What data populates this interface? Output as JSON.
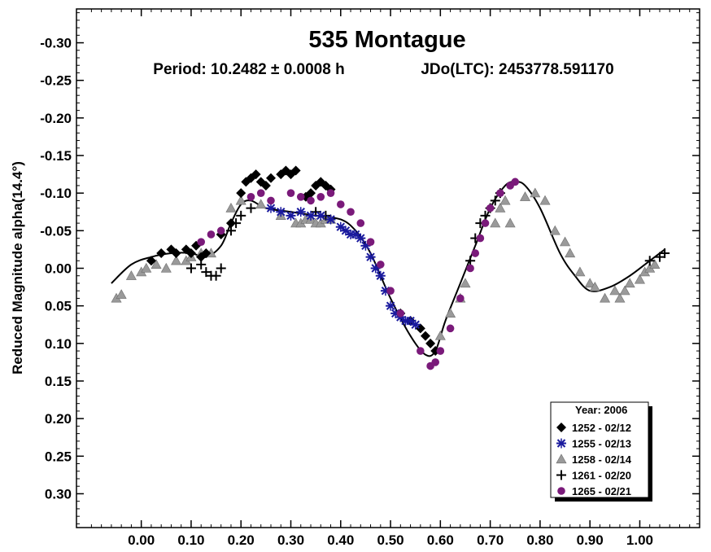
{
  "chart_data": {
    "type": "scatter",
    "title": "535 Montague",
    "subtitle_period": "Period: 10.2482 ± 0.0008 h",
    "subtitle_epoch": "JDo(LTC): 2453778.591170",
    "ylabel": "Reduced Magnitude alpha(14.4°)",
    "xlabel": "",
    "xlim": [
      -0.13,
      1.12
    ],
    "ylim": [
      -0.345,
      0.345
    ],
    "y_inverted": true,
    "x_ticks": [
      "0.00",
      "0.10",
      "0.20",
      "0.30",
      "0.40",
      "0.50",
      "0.60",
      "0.70",
      "0.80",
      "0.90",
      "1.00"
    ],
    "x_tick_values": [
      0,
      0.1,
      0.2,
      0.3,
      0.4,
      0.5,
      0.6,
      0.7,
      0.8,
      0.9,
      1.0
    ],
    "y_ticks": [
      "-0.30",
      "-0.25",
      "-0.20",
      "-0.15",
      "-0.10",
      "-0.05",
      "0.00",
      "0.05",
      "0.10",
      "0.15",
      "0.20",
      "0.25",
      "0.30"
    ],
    "y_tick_values": [
      -0.3,
      -0.25,
      -0.2,
      -0.15,
      -0.1,
      -0.05,
      0,
      0.05,
      0.1,
      0.15,
      0.2,
      0.25,
      0.3
    ],
    "legend_title": "Year: 2006",
    "legend_position": "bottom-right",
    "fit_curve": {
      "x": [
        -0.06,
        -0.02,
        0.02,
        0.06,
        0.1,
        0.13,
        0.16,
        0.18,
        0.2,
        0.22,
        0.25,
        0.3,
        0.35,
        0.4,
        0.43,
        0.46,
        0.5,
        0.54,
        0.57,
        0.59,
        0.61,
        0.64,
        0.67,
        0.7,
        0.73,
        0.75,
        0.77,
        0.8,
        0.84,
        0.87,
        0.9,
        0.94,
        0.98,
        1.02,
        1.05
      ],
      "y": [
        0.02,
        -0.005,
        -0.015,
        -0.02,
        -0.02,
        -0.015,
        -0.03,
        -0.06,
        -0.085,
        -0.09,
        -0.08,
        -0.075,
        -0.07,
        -0.065,
        -0.05,
        -0.02,
        0.04,
        0.09,
        0.115,
        0.11,
        0.07,
        0.02,
        -0.03,
        -0.08,
        -0.11,
        -0.115,
        -0.11,
        -0.08,
        -0.02,
        0.01,
        0.03,
        0.025,
        0.01,
        -0.01,
        -0.025
      ]
    },
    "series": [
      {
        "name": "1252 - 02/12",
        "marker": "diamond",
        "color": "#000000",
        "x": [
          0.02,
          0.04,
          0.06,
          0.07,
          0.09,
          0.1,
          0.11,
          0.12,
          0.13,
          0.16,
          0.18,
          0.2,
          0.21,
          0.22,
          0.23,
          0.24,
          0.25,
          0.26,
          0.28,
          0.29,
          0.3,
          0.31,
          0.33,
          0.34,
          0.35,
          0.36,
          0.37,
          0.38,
          0.52,
          0.54,
          0.56,
          0.57,
          0.58,
          0.59
        ],
        "y": [
          -0.01,
          -0.02,
          -0.025,
          -0.02,
          -0.025,
          -0.02,
          -0.03,
          -0.015,
          -0.02,
          -0.045,
          -0.06,
          -0.1,
          -0.115,
          -0.12,
          -0.125,
          -0.115,
          -0.11,
          -0.12,
          -0.125,
          -0.13,
          -0.125,
          -0.13,
          -0.095,
          -0.1,
          -0.11,
          -0.115,
          -0.11,
          -0.105,
          0.06,
          0.07,
          0.08,
          0.09,
          0.1,
          0.11
        ]
      },
      {
        "name": "1255 - 02/13",
        "marker": "asterisk",
        "color": "#1a1a9e",
        "x": [
          0.26,
          0.28,
          0.3,
          0.32,
          0.34,
          0.36,
          0.38,
          0.4,
          0.41,
          0.42,
          0.43,
          0.44,
          0.45,
          0.46,
          0.47,
          0.48,
          0.49,
          0.5,
          0.51,
          0.52,
          0.53,
          0.54,
          0.55
        ],
        "y": [
          -0.08,
          -0.075,
          -0.07,
          -0.075,
          -0.07,
          -0.07,
          -0.065,
          -0.055,
          -0.05,
          -0.045,
          -0.045,
          -0.04,
          -0.03,
          -0.015,
          0.0,
          0.01,
          0.03,
          0.05,
          0.06,
          0.065,
          0.07,
          0.07,
          0.075
        ]
      },
      {
        "name": "1258 - 02/14",
        "marker": "triangle",
        "color": "#9a9a9a",
        "x": [
          -0.05,
          -0.04,
          -0.02,
          0.0,
          0.01,
          0.03,
          0.05,
          0.07,
          0.09,
          0.1,
          0.12,
          0.14,
          0.18,
          0.2,
          0.24,
          0.28,
          0.31,
          0.32,
          0.33,
          0.34,
          0.35,
          0.36,
          0.37,
          0.38,
          0.6,
          0.62,
          0.64,
          0.65,
          0.71,
          0.72,
          0.73,
          0.74,
          0.77,
          0.79,
          0.81,
          0.83,
          0.85,
          0.86,
          0.88,
          0.9,
          0.91,
          0.93,
          0.95,
          0.96,
          0.97,
          0.98,
          1.0,
          1.01,
          1.02,
          1.03
        ],
        "y": [
          0.04,
          0.035,
          0.01,
          0.005,
          0.0,
          -0.005,
          0.0,
          -0.01,
          -0.01,
          -0.015,
          -0.02,
          -0.02,
          -0.08,
          -0.09,
          -0.085,
          -0.07,
          -0.06,
          -0.06,
          -0.065,
          -0.065,
          -0.06,
          -0.06,
          -0.065,
          -0.065,
          0.09,
          0.06,
          0.04,
          0.02,
          -0.06,
          -0.08,
          -0.09,
          -0.06,
          -0.095,
          -0.1,
          -0.09,
          -0.05,
          -0.035,
          -0.02,
          0.005,
          0.02,
          0.025,
          0.04,
          0.03,
          0.04,
          0.03,
          0.02,
          0.015,
          0.005,
          0.0,
          -0.005
        ]
      },
      {
        "name": "1261 - 02/20",
        "marker": "plus",
        "color": "#000000",
        "x": [
          0.1,
          0.12,
          0.13,
          0.14,
          0.15,
          0.16,
          0.18,
          0.19,
          0.2,
          0.22,
          0.35,
          0.37,
          0.66,
          0.67,
          0.68,
          0.69,
          0.7,
          0.71,
          0.72,
          1.02,
          1.04,
          1.05
        ],
        "y": [
          0.0,
          -0.005,
          0.005,
          0.01,
          0.01,
          0.0,
          -0.05,
          -0.06,
          -0.07,
          -0.08,
          -0.075,
          -0.07,
          -0.01,
          -0.04,
          -0.06,
          -0.07,
          -0.08,
          -0.09,
          -0.1,
          -0.01,
          -0.015,
          -0.02
        ]
      },
      {
        "name": "1265 - 02/21",
        "marker": "circle",
        "color": "#7a1a7a",
        "x": [
          0.12,
          0.14,
          0.16,
          0.22,
          0.24,
          0.26,
          0.3,
          0.32,
          0.34,
          0.36,
          0.38,
          0.4,
          0.42,
          0.44,
          0.46,
          0.48,
          0.5,
          0.52,
          0.56,
          0.58,
          0.59,
          0.6,
          0.62,
          0.64,
          0.66,
          0.67,
          0.68,
          0.69,
          0.7,
          0.72,
          0.74,
          0.75
        ],
        "y": [
          -0.035,
          -0.045,
          -0.05,
          -0.095,
          -0.1,
          -0.09,
          -0.1,
          -0.095,
          -0.09,
          -0.095,
          -0.1,
          -0.085,
          -0.075,
          -0.06,
          -0.035,
          -0.005,
          0.03,
          0.06,
          0.11,
          0.13,
          0.125,
          0.11,
          0.08,
          0.04,
          0.0,
          -0.02,
          -0.04,
          -0.06,
          -0.08,
          -0.1,
          -0.11,
          -0.115
        ]
      }
    ]
  }
}
